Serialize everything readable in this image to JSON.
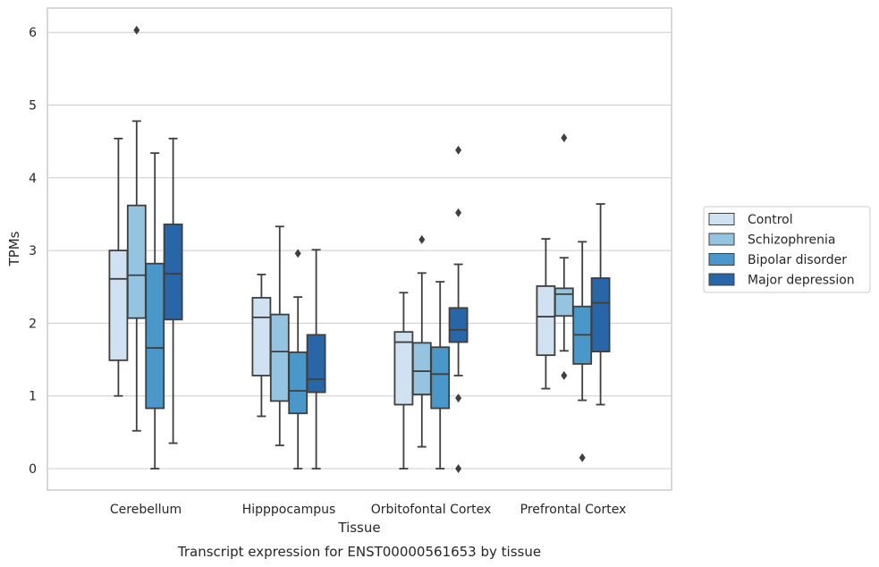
{
  "caption": "Transcript expression for ENST00000561653 by tissue",
  "chart_data": {
    "type": "box",
    "xlabel": "Tissue",
    "ylabel": "TPMs",
    "ylim": [
      -0.3,
      6.35
    ],
    "yticks": [
      "0",
      "1",
      "2",
      "3",
      "4",
      "5",
      "6"
    ],
    "ytick_values": [
      0,
      1,
      2,
      3,
      4,
      5,
      6
    ],
    "grid": "horizontal",
    "legend_position": "right",
    "categories": [
      "Cerebellum",
      "Hipppocampus",
      "Orbitofontal Cortex",
      "Prefrontal Cortex"
    ],
    "series": [
      {
        "name": "Control",
        "color": "#d0e1f2",
        "boxes": [
          {
            "whislo": 1.0,
            "q1": 1.49,
            "median": 2.61,
            "q3": 3.0,
            "whishi": 4.54,
            "fliers": []
          },
          {
            "whislo": 0.72,
            "q1": 1.28,
            "median": 2.08,
            "q3": 2.35,
            "whishi": 2.67,
            "fliers": []
          },
          {
            "whislo": 0.0,
            "q1": 0.88,
            "median": 1.74,
            "q3": 1.88,
            "whishi": 2.42,
            "fliers": []
          },
          {
            "whislo": 1.1,
            "q1": 1.56,
            "median": 2.09,
            "q3": 2.51,
            "whishi": 3.16,
            "fliers": []
          }
        ]
      },
      {
        "name": "Schizophrenia",
        "color": "#94c4df",
        "boxes": [
          {
            "whislo": 0.52,
            "q1": 2.07,
            "median": 2.66,
            "q3": 3.62,
            "whishi": 4.78,
            "fliers": [
              6.03
            ]
          },
          {
            "whislo": 0.32,
            "q1": 0.93,
            "median": 1.61,
            "q3": 2.12,
            "whishi": 3.33,
            "fliers": []
          },
          {
            "whislo": 0.3,
            "q1": 1.02,
            "median": 1.34,
            "q3": 1.73,
            "whishi": 2.69,
            "fliers": [
              3.15
            ]
          },
          {
            "whislo": 1.62,
            "q1": 2.1,
            "median": 2.4,
            "q3": 2.48,
            "whishi": 2.9,
            "fliers": [
              4.55,
              1.28
            ]
          }
        ]
      },
      {
        "name": "Bipolar disorder",
        "color": "#4a98c9",
        "boxes": [
          {
            "whislo": 0.0,
            "q1": 0.83,
            "median": 1.66,
            "q3": 2.82,
            "whishi": 4.34,
            "fliers": []
          },
          {
            "whislo": 0.0,
            "q1": 0.76,
            "median": 1.07,
            "q3": 1.6,
            "whishi": 2.36,
            "fliers": [
              2.96
            ]
          },
          {
            "whislo": 0.0,
            "q1": 0.83,
            "median": 1.3,
            "q3": 1.67,
            "whishi": 2.57,
            "fliers": []
          },
          {
            "whislo": 0.94,
            "q1": 1.44,
            "median": 1.84,
            "q3": 2.23,
            "whishi": 3.12,
            "fliers": [
              0.15
            ]
          }
        ]
      },
      {
        "name": "Major depression",
        "color": "#2866a7",
        "boxes": [
          {
            "whislo": 0.35,
            "q1": 2.05,
            "median": 2.68,
            "q3": 3.36,
            "whishi": 4.54,
            "fliers": []
          },
          {
            "whislo": 0.0,
            "q1": 1.05,
            "median": 1.23,
            "q3": 1.84,
            "whishi": 3.01,
            "fliers": []
          },
          {
            "whislo": 1.28,
            "q1": 1.74,
            "median": 1.91,
            "q3": 2.21,
            "whishi": 2.81,
            "fliers": [
              4.38,
              3.52,
              0.97,
              0.0
            ]
          },
          {
            "whislo": 0.88,
            "q1": 1.61,
            "median": 2.28,
            "q3": 2.62,
            "whishi": 3.64,
            "fliers": []
          }
        ]
      }
    ]
  }
}
